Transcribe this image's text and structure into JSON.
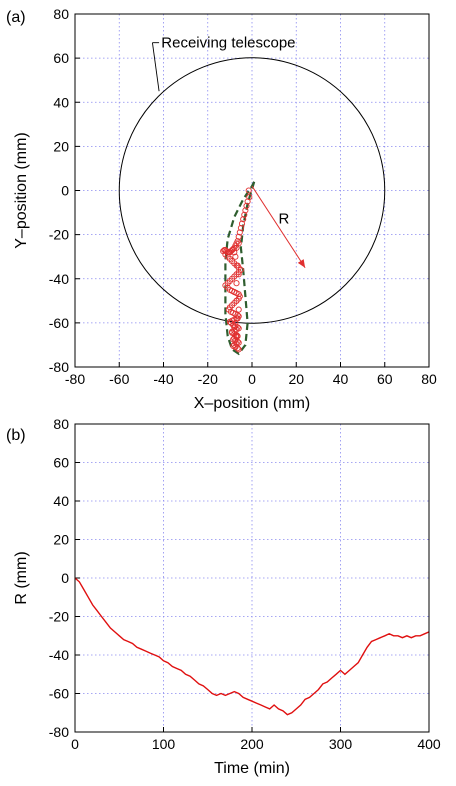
{
  "chart_data": [
    {
      "panel_label": "(a)",
      "type": "scatter",
      "xlabel": "X–position (mm)",
      "ylabel": "Y–position (mm)",
      "xlim": [
        -80,
        80
      ],
      "ylim": [
        -80,
        80
      ],
      "xticks": [
        -80,
        -60,
        -40,
        -20,
        0,
        20,
        40,
        60,
        80
      ],
      "yticks": [
        -80,
        -60,
        -40,
        -20,
        0,
        20,
        40,
        60,
        80
      ],
      "grid": true,
      "annotations": {
        "telescope_label": "Receiving telescope",
        "telescope_circle": {
          "cx": 0,
          "cy": 0,
          "r": 60
        },
        "radius_label": "R",
        "radius_arrow": {
          "from": [
            0,
            2
          ],
          "to": [
            24,
            -35
          ]
        }
      },
      "colors": {
        "points": "#e03030",
        "arrow": "#e03030",
        "envelope": "#2f5e2f",
        "circle": "#000000"
      },
      "series": [
        {
          "marker": "open-circle",
          "x": [
            -1.5,
            -1.2,
            -2,
            -2.5,
            -3,
            -3.5,
            -4,
            -4.5,
            -5,
            -5.5,
            -6,
            -6.5,
            -7,
            -7.5,
            -8,
            -8.5,
            -9,
            -9.5,
            -10,
            -10.5,
            -11,
            -11.5,
            -12,
            -12.5,
            -13,
            -12,
            -11,
            -10,
            -9,
            -8,
            -7,
            -6,
            -5,
            -6,
            -7,
            -8,
            -9,
            -10,
            -11,
            -12,
            -11,
            -10,
            -9,
            -8,
            -7,
            -6,
            -5.5,
            -6,
            -7,
            -8,
            -9,
            -10,
            -10.5,
            -9.5,
            -8.5,
            -7.5,
            -6.5,
            -6,
            -7,
            -8,
            -9,
            -10,
            -9.5,
            -8.5,
            -7.5,
            -6.5,
            -6,
            -7,
            -8,
            -9,
            -9,
            -8,
            -7,
            -6.5,
            -7,
            -8,
            -8.5,
            -7.5,
            -6.5,
            -6,
            -7,
            -8,
            -8.5,
            -7.5,
            -6.5,
            -6,
            -7,
            -8,
            -7.5,
            -6.5,
            -6,
            -7,
            -8,
            -7,
            -6,
            -6.5,
            -7.5,
            -8,
            -7,
            -6
          ],
          "y": [
            0,
            -3,
            -5,
            -7,
            -9,
            -11,
            -13,
            -15,
            -17,
            -19,
            -21,
            -23,
            -24,
            -25,
            -26,
            -26.5,
            -27,
            -27.5,
            -28,
            -28,
            -28,
            -27.5,
            -27,
            -27,
            -27.5,
            -29,
            -30,
            -31,
            -32,
            -33,
            -34,
            -35,
            -36,
            -37,
            -38,
            -39,
            -40,
            -41,
            -42,
            -43,
            -44,
            -45,
            -45.5,
            -46,
            -46.5,
            -47,
            -48,
            -49,
            -50,
            -51,
            -52,
            -53,
            -54,
            -55,
            -55.5,
            -56,
            -56.5,
            -57,
            -58,
            -58.5,
            -59,
            -59.5,
            -60,
            -61,
            -61.5,
            -62,
            -62.5,
            -63,
            -63.5,
            -64,
            -64.5,
            -65,
            -65.5,
            -66,
            -66.5,
            -67,
            -67.5,
            -68,
            -68.5,
            -69,
            -69.5,
            -70,
            -70.5,
            -71,
            -71.5,
            -72,
            -66,
            -62,
            -60,
            -58,
            -54,
            -50,
            -46,
            -42,
            -38,
            -34,
            -30,
            -28,
            -26,
            -24
          ]
        }
      ]
    },
    {
      "panel_label": "(b)",
      "type": "line",
      "xlabel": "Time (min)",
      "ylabel": "R (mm)",
      "xlim": [
        0,
        400
      ],
      "ylim": [
        -80,
        80
      ],
      "xticks": [
        0,
        100,
        200,
        300,
        400
      ],
      "yticks": [
        -80,
        -60,
        -40,
        -20,
        0,
        20,
        40,
        60,
        80
      ],
      "grid": true,
      "colors": {
        "line": "#e01010"
      },
      "series": [
        {
          "x": [
            0,
            5,
            10,
            15,
            20,
            25,
            30,
            35,
            40,
            45,
            50,
            55,
            60,
            65,
            70,
            75,
            80,
            85,
            90,
            95,
            100,
            105,
            110,
            115,
            120,
            125,
            130,
            135,
            140,
            145,
            150,
            155,
            160,
            165,
            170,
            175,
            180,
            185,
            190,
            195,
            200,
            205,
            210,
            215,
            220,
            225,
            230,
            235,
            240,
            245,
            250,
            255,
            260,
            265,
            270,
            275,
            280,
            285,
            290,
            295,
            300,
            305,
            310,
            315,
            320,
            325,
            330,
            335,
            340,
            345,
            350,
            355,
            360,
            365,
            370,
            375,
            380,
            385,
            390,
            395,
            400
          ],
          "y": [
            0,
            -2,
            -6,
            -10,
            -14,
            -17,
            -20,
            -23,
            -26,
            -28,
            -30,
            -32,
            -33,
            -34,
            -36,
            -37,
            -38,
            -39,
            -40,
            -41,
            -43,
            -44,
            -46,
            -47,
            -48,
            -50,
            -51,
            -53,
            -55,
            -56,
            -58,
            -60,
            -61,
            -60,
            -61,
            -60,
            -59,
            -60,
            -62,
            -63,
            -64,
            -65,
            -66,
            -67,
            -68,
            -66,
            -68,
            -69,
            -71,
            -70,
            -68,
            -66,
            -63,
            -62,
            -60,
            -58,
            -55,
            -54,
            -52,
            -50,
            -48,
            -50,
            -48,
            -46,
            -44,
            -40,
            -36,
            -33,
            -32,
            -31,
            -30,
            -29,
            -30,
            -30,
            -31,
            -30,
            -31,
            -30,
            -30,
            -29,
            -28
          ]
        }
      ]
    }
  ]
}
